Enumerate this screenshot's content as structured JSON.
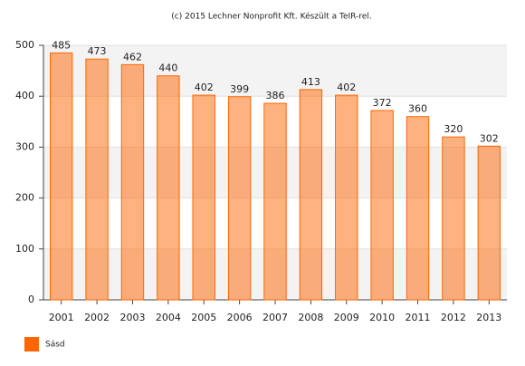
{
  "chart_data": {
    "type": "bar",
    "title": "(c) 2015 Lechner Nonprofit Kft. Készült a TeIR-rel.",
    "categories": [
      "2001",
      "2002",
      "2003",
      "2004",
      "2005",
      "2006",
      "2007",
      "2008",
      "2009",
      "2010",
      "2011",
      "2012",
      "2013"
    ],
    "series": [
      {
        "name": "Sásd",
        "color": "#ff6600",
        "values": [
          485,
          473,
          462,
          440,
          402,
          399,
          386,
          413,
          402,
          372,
          360,
          320,
          302
        ]
      }
    ],
    "ylim": [
      0,
      500
    ],
    "yticks": [
      0,
      100,
      200,
      300,
      400,
      500
    ],
    "grid": true,
    "legend": "bottom-left"
  }
}
